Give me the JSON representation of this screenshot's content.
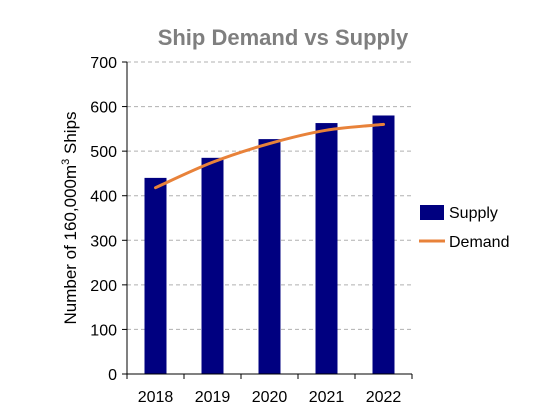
{
  "chart_data": {
    "type": "bar",
    "title": "Ship Demand vs Supply",
    "ylabel": {
      "prefix": "Number of 160,000m",
      "superscript": "3",
      "suffix": " Ships"
    },
    "xlabel": "",
    "categories": [
      "2018",
      "2019",
      "2020",
      "2021",
      "2022"
    ],
    "ylim": [
      0,
      700
    ],
    "yticks": [
      0,
      100,
      200,
      300,
      400,
      500,
      600,
      700
    ],
    "grid": true,
    "legend_position": "right",
    "series": [
      {
        "name": "Supply",
        "kind": "bar",
        "color": "#000080",
        "values": [
          440,
          485,
          527,
          563,
          580
        ]
      },
      {
        "name": "Demand",
        "kind": "line",
        "color": "#e8823a",
        "values": [
          418,
          475,
          517,
          547,
          560
        ]
      }
    ]
  }
}
